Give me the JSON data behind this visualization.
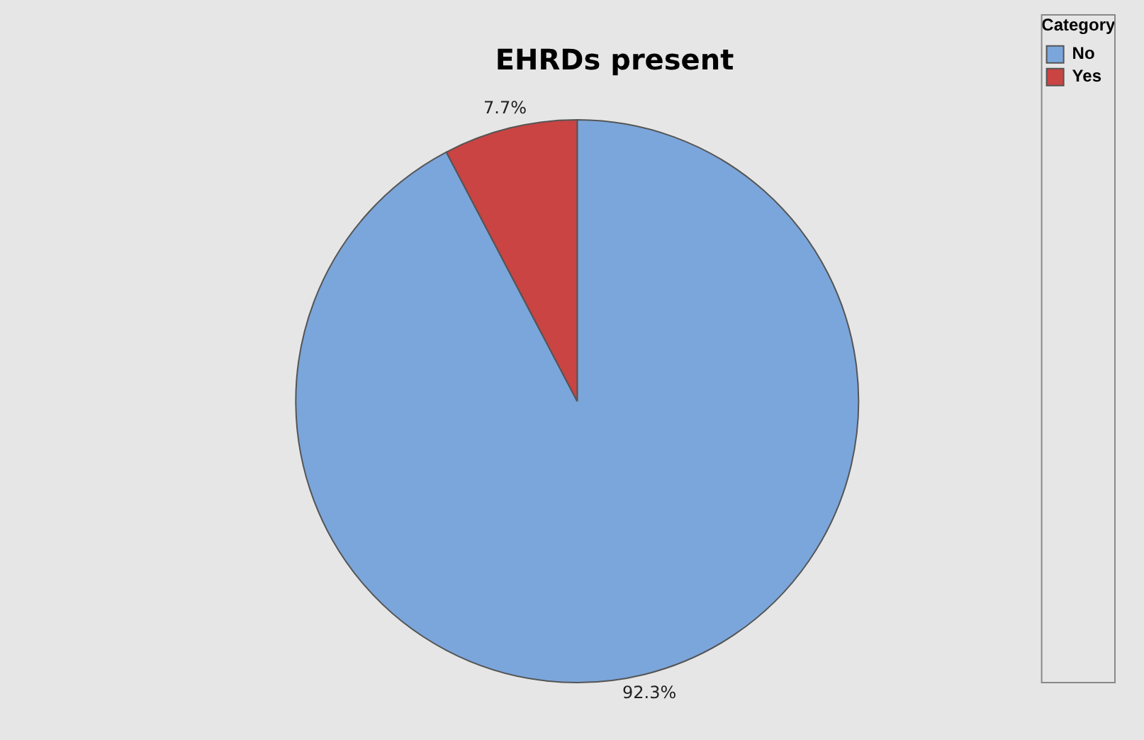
{
  "chart_data": {
    "type": "pie",
    "title": "EHRDs present",
    "legend_title": "Category",
    "legend": "top right",
    "categories": [
      "No",
      "Yes"
    ],
    "values": [
      92.3,
      7.7
    ],
    "colors": [
      "#7ba6db",
      "#c94443"
    ],
    "value_labels": [
      "92.3%",
      "7.7%"
    ]
  }
}
